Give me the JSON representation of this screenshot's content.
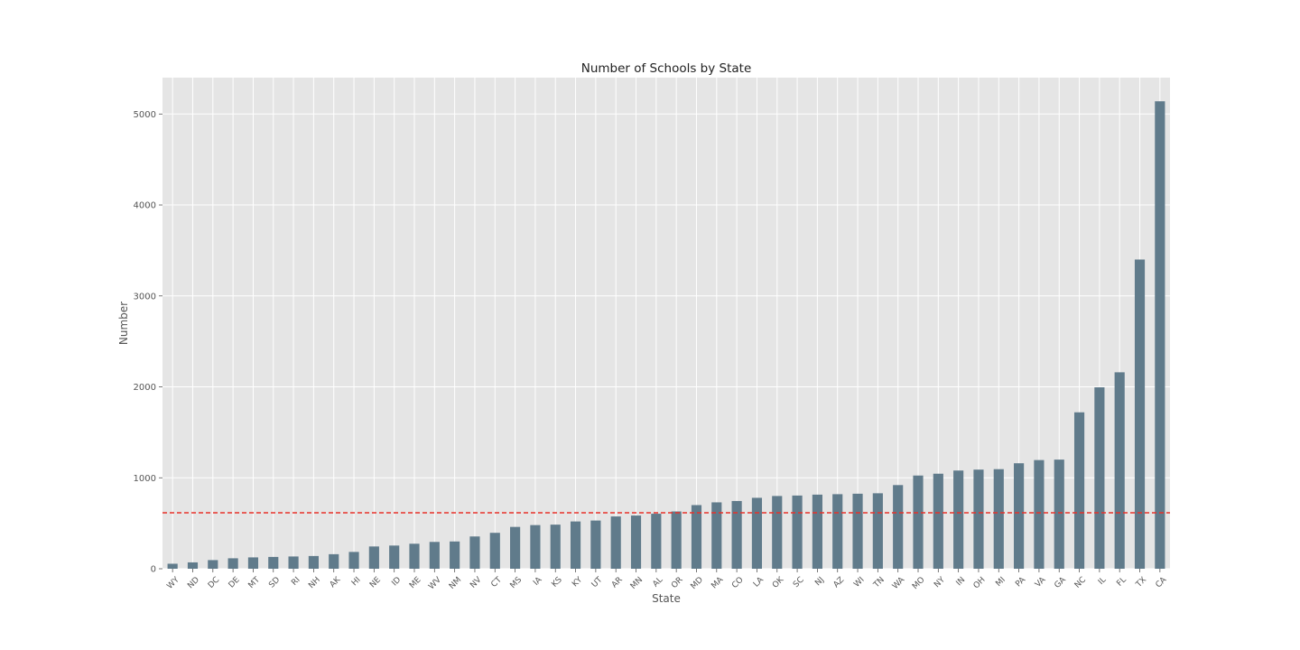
{
  "colors": {
    "bar": "#607b8b",
    "background": "#e5e5e5",
    "grid": "#ffffff",
    "mean_line": "#e8312a"
  },
  "chart_data": {
    "type": "bar",
    "title": "Number of Schools by State",
    "xlabel": "State",
    "ylabel": "Number",
    "ylim": [
      0,
      5400
    ],
    "yticks": [
      0,
      1000,
      2000,
      3000,
      4000,
      5000
    ],
    "grid": true,
    "reference_line": {
      "style": "dashed",
      "value": 615
    },
    "categories": [
      "WY",
      "ND",
      "DC",
      "DE",
      "MT",
      "SD",
      "RI",
      "NH",
      "AK",
      "HI",
      "NE",
      "ID",
      "ME",
      "WV",
      "NM",
      "NV",
      "CT",
      "MS",
      "IA",
      "KS",
      "KY",
      "UT",
      "AR",
      "MN",
      "AL",
      "OR",
      "MD",
      "MA",
      "CO",
      "LA",
      "OK",
      "SC",
      "NJ",
      "AZ",
      "WI",
      "TN",
      "WA",
      "MO",
      "NY",
      "IN",
      "OH",
      "MI",
      "PA",
      "VA",
      "GA",
      "NC",
      "IL",
      "FL",
      "TX",
      "CA"
    ],
    "values": [
      55,
      70,
      95,
      115,
      125,
      130,
      135,
      140,
      160,
      185,
      245,
      255,
      275,
      295,
      300,
      355,
      395,
      460,
      480,
      485,
      520,
      530,
      575,
      585,
      605,
      630,
      700,
      730,
      745,
      780,
      800,
      805,
      815,
      820,
      825,
      830,
      920,
      1025,
      1045,
      1080,
      1090,
      1095,
      1160,
      1195,
      1200,
      1720,
      1995,
      2160,
      3400,
      5140
    ]
  }
}
